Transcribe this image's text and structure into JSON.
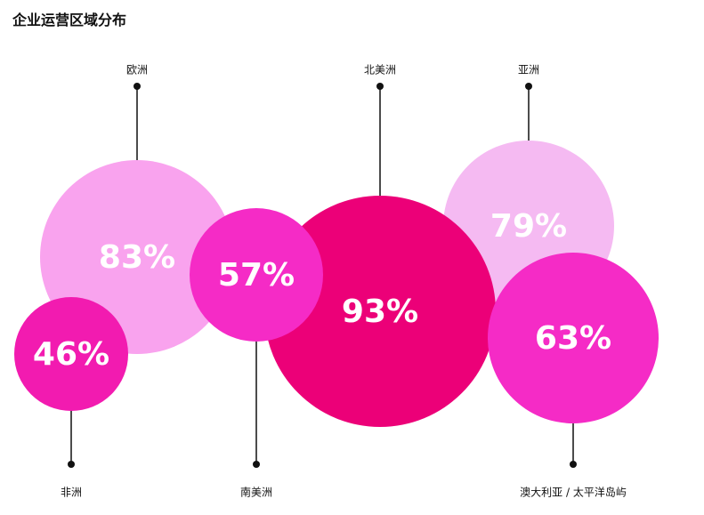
{
  "chart_data": {
    "type": "bubble",
    "title": "企业运营区域分布",
    "unit": "%",
    "series": [
      {
        "name": "欧洲",
        "value": 83,
        "color": "#F9A3EE"
      },
      {
        "name": "非洲",
        "value": 46,
        "color": "#F21BB0"
      },
      {
        "name": "南美洲",
        "value": 57,
        "color": "#F52BC6"
      },
      {
        "name": "北美洲",
        "value": 93,
        "color": "#EC0078"
      },
      {
        "name": "亚洲",
        "value": 79,
        "color": "#F5BAF2"
      },
      {
        "name": "澳大利亚 / 太平洋岛屿",
        "value": 63,
        "color": "#F52BC6"
      }
    ],
    "label_color": "#111111",
    "value_text_color": "#ffffff"
  }
}
